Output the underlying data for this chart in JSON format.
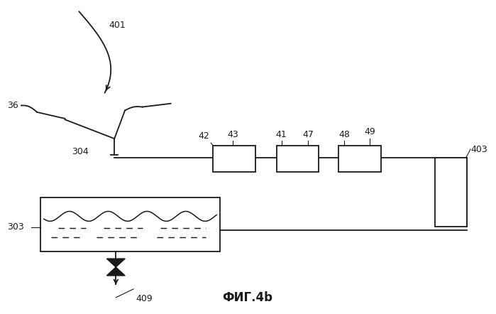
{
  "bg_color": "#ffffff",
  "line_color": "#1a1a1a",
  "title": "ФИГ.4b",
  "title_fontsize": 12,
  "lw": 1.3,
  "fig_w": 6.99,
  "fig_h": 4.42,
  "dpi": 100
}
